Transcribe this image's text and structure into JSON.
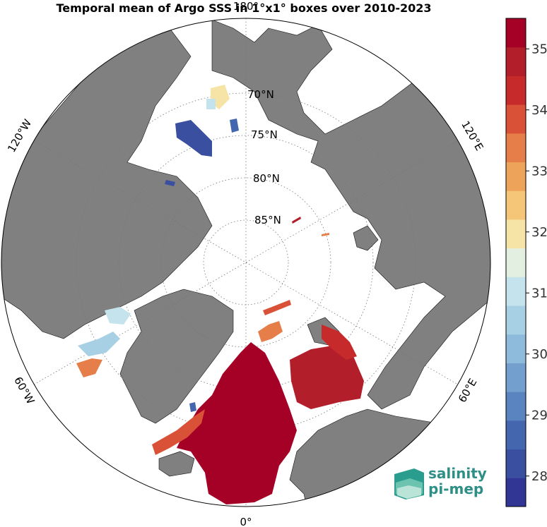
{
  "title": "Temporal mean of Argo SSS in 1°x1° boxes over 2010-2023",
  "map": {
    "projection": "north polar stereographic",
    "land_color": "#808080",
    "ocean_color": "#ffffff",
    "lat_labels": [
      "70°N",
      "75°N",
      "80°N",
      "85°N"
    ],
    "lon_labels": {
      "top": "180°",
      "bottom": "0°",
      "left_upper": "120°W",
      "left_lower": "60°W",
      "right_upper": "120°E",
      "right_lower": "60°E"
    }
  },
  "colorbar": {
    "min": 27.5,
    "max": 35.5,
    "ticks": [
      "28",
      "29",
      "30",
      "31",
      "32",
      "33",
      "34",
      "35"
    ],
    "colors": [
      "#313695",
      "#3a4fa0",
      "#4466ae",
      "#5a84bf",
      "#739fce",
      "#8ebbdb",
      "#a7d0e4",
      "#c4e3ec",
      "#e3efe1",
      "#f6e4a6",
      "#f5c678",
      "#eea35a",
      "#e57e49",
      "#d95238",
      "#c72a2b",
      "#b21e2a",
      "#a50026"
    ]
  },
  "logo": {
    "line1": "salinity",
    "line2": "pi-mep"
  }
}
